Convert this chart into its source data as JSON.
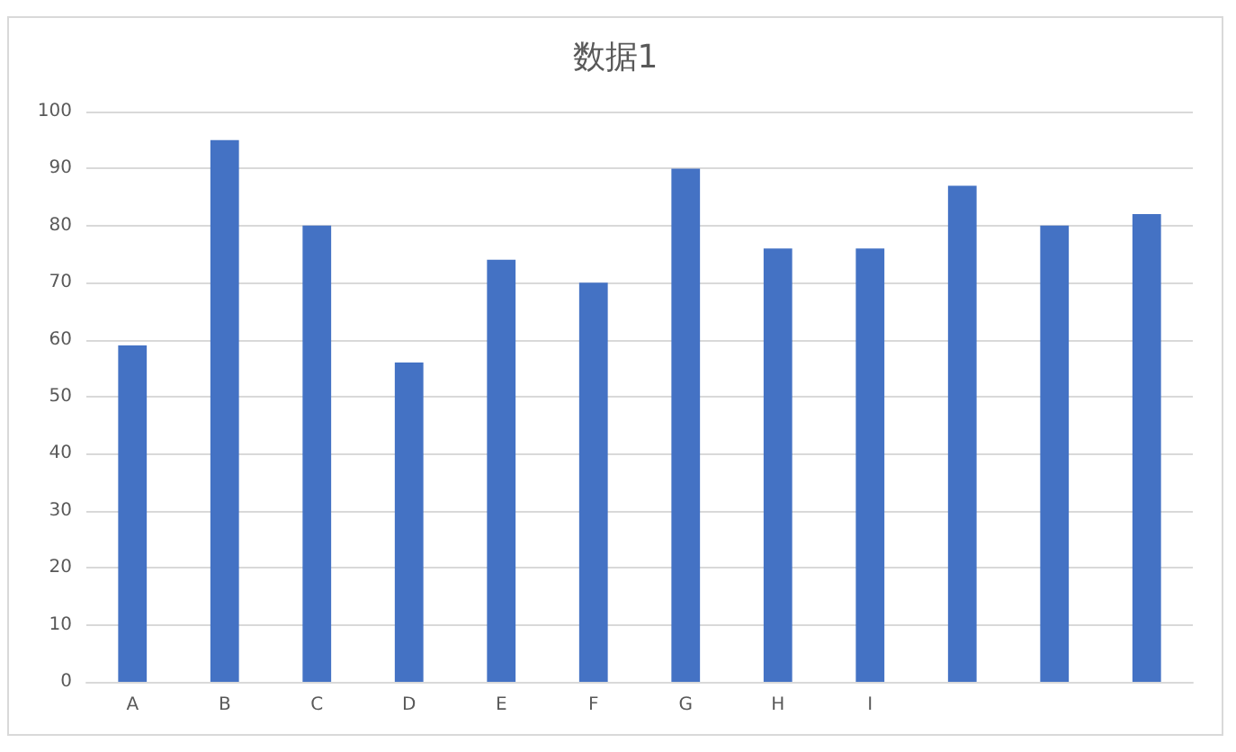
{
  "chart_data": {
    "type": "bar",
    "title": "数据1",
    "categories": [
      "A",
      "B",
      "C",
      "D",
      "E",
      "F",
      "G",
      "H",
      "I",
      null,
      null,
      null
    ],
    "values": [
      59,
      95,
      80,
      56,
      74,
      70,
      90,
      76,
      76,
      87,
      80,
      82
    ],
    "color": "#4472c4",
    "ylim": [
      0,
      100
    ],
    "yticks": [
      0,
      10,
      20,
      30,
      40,
      50,
      60,
      70,
      80,
      90,
      100
    ],
    "grid": "y"
  }
}
